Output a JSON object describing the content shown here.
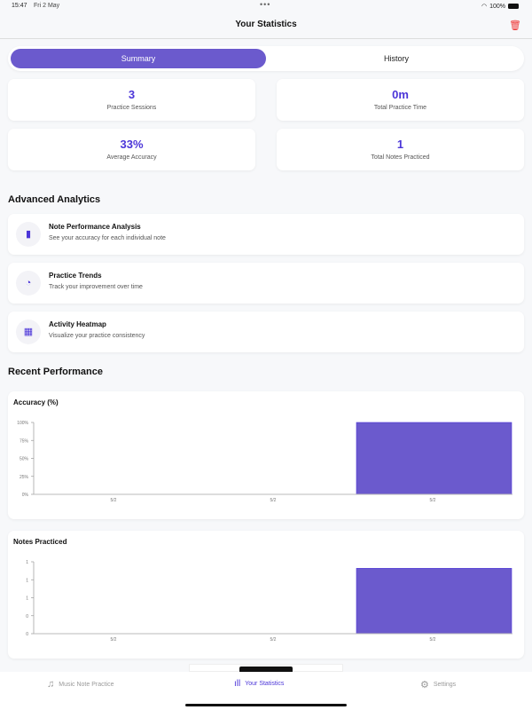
{
  "status": {
    "time": "15:47",
    "date": "Fri 2 May",
    "battery": "100%"
  },
  "header": {
    "title": "Your Statistics"
  },
  "segments": {
    "summary": "Summary",
    "history": "History"
  },
  "stats": [
    {
      "value": "3",
      "label": "Practice Sessions"
    },
    {
      "value": "0m",
      "label": "Total Practice Time"
    },
    {
      "value": "33%",
      "label": "Average Accuracy"
    },
    {
      "value": "1",
      "label": "Total Notes Practiced"
    }
  ],
  "advanced": {
    "title": "Advanced Analytics",
    "items": [
      {
        "title": "Note Performance Analysis",
        "subtitle": "See your accuracy for each individual note"
      },
      {
        "title": "Practice Trends",
        "subtitle": "Track your improvement over time"
      },
      {
        "title": "Activity Heatmap",
        "subtitle": "Visualize your practice consistency"
      }
    ]
  },
  "recent": {
    "title": "Recent Performance"
  },
  "chart_data": [
    {
      "type": "bar",
      "title": "Accuracy (%)",
      "categories": [
        "5/2",
        "5/2",
        "5/2"
      ],
      "values": [
        0,
        0,
        100
      ],
      "ylim": [
        0,
        100
      ],
      "yticks": [
        "0%",
        "25%",
        "50%",
        "75%",
        "100%"
      ],
      "color": "#6b5acd"
    },
    {
      "type": "bar",
      "title": "Notes Practiced",
      "categories": [
        "5/2",
        "5/2",
        "5/2"
      ],
      "values": [
        0,
        0,
        1
      ],
      "ylim": [
        0,
        1.1
      ],
      "yticks": [
        "0",
        "0",
        "1",
        "1",
        "1"
      ],
      "color": "#6b5acd"
    }
  ],
  "tabs": [
    {
      "label": "Music Note Practice"
    },
    {
      "label": "Your Statistics"
    },
    {
      "label": "Settings"
    }
  ]
}
